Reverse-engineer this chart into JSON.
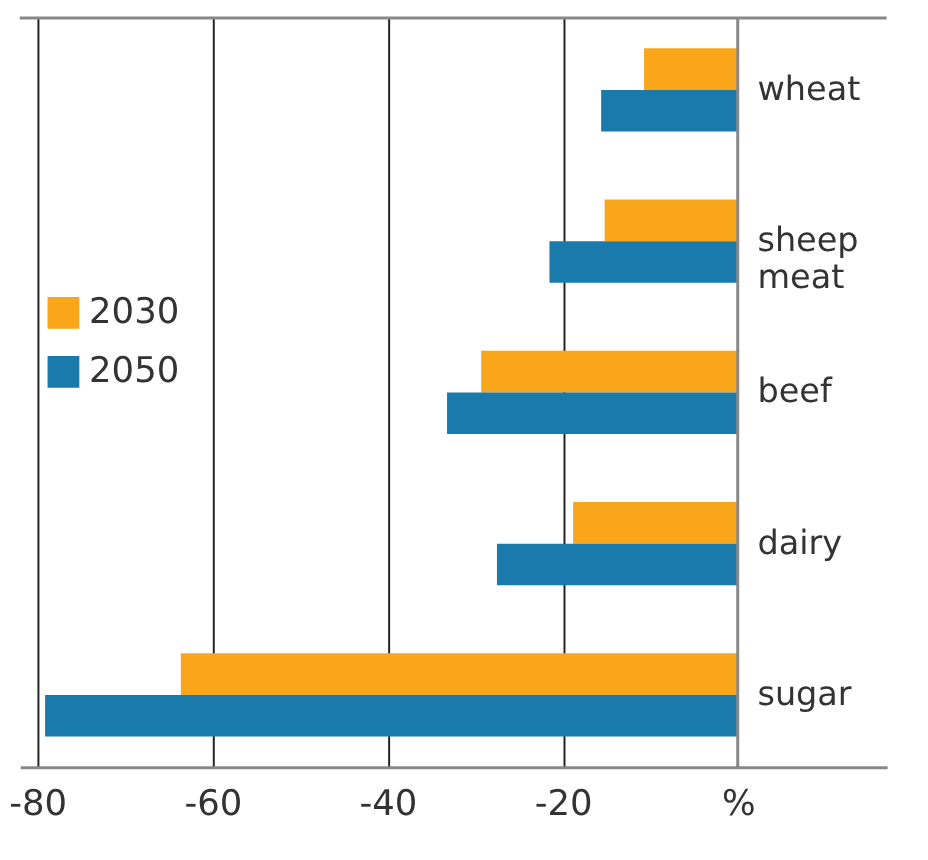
{
  "chart_data": {
    "type": "bar",
    "orientation": "horizontal",
    "categories": [
      "wheat",
      "sheep meat",
      "beef",
      "dairy",
      "sugar"
    ],
    "series": [
      {
        "name": "2030",
        "color": "#f9a61a",
        "values": [
          -10.7,
          -15.2,
          -29.3,
          -18.8,
          -63.6
        ]
      },
      {
        "name": "2050",
        "color": "#1a7aab",
        "values": [
          -15.6,
          -21.5,
          -33.2,
          -27.5,
          -79.1
        ]
      }
    ],
    "xlim": [
      -82,
      17
    ],
    "xticks": [
      -80,
      -60,
      -40,
      -20,
      {
        "value": 0,
        "label": "%"
      }
    ],
    "grid": "x",
    "legend": "left"
  }
}
